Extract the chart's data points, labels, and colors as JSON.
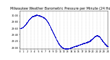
{
  "title": "Milwaukee Weather Barometric Pressure per Minute (24 Hours)",
  "title_fontsize": 3.5,
  "dot_color": "#0000cc",
  "dot_size": 0.3,
  "background_color": "#ffffff",
  "grid_color": "#aaaaaa",
  "ylim": [
    28.95,
    30.15
  ],
  "xlim": [
    0,
    1440
  ],
  "yticks": [
    29.0,
    29.2,
    29.4,
    29.6,
    29.8,
    30.0
  ],
  "tick_fontsize": 2.5,
  "xtick_hours": [
    0,
    60,
    120,
    180,
    240,
    300,
    360,
    420,
    480,
    540,
    600,
    660,
    720,
    780,
    840,
    900,
    960,
    1020,
    1080,
    1140,
    1200,
    1260,
    1320,
    1380,
    1440
  ],
  "xtick_labels": [
    "0",
    "1",
    "2",
    "3",
    "4",
    "5",
    "6",
    "7",
    "8",
    "9",
    "10",
    "11",
    "12",
    "13",
    "14",
    "15",
    "16",
    "17",
    "18",
    "19",
    "20",
    "21",
    "22",
    "23",
    "24"
  ],
  "pressure_points": [
    [
      0,
      29.6
    ],
    [
      30,
      29.62
    ],
    [
      60,
      29.65
    ],
    [
      90,
      29.72
    ],
    [
      120,
      29.8
    ],
    [
      150,
      29.88
    ],
    [
      180,
      29.94
    ],
    [
      210,
      29.98
    ],
    [
      240,
      30.0
    ],
    [
      270,
      30.02
    ],
    [
      300,
      30.01
    ],
    [
      330,
      29.99
    ],
    [
      360,
      29.97
    ],
    [
      390,
      29.94
    ],
    [
      420,
      29.9
    ],
    [
      450,
      29.82
    ],
    [
      480,
      29.72
    ],
    [
      510,
      29.6
    ],
    [
      540,
      29.48
    ],
    [
      570,
      29.36
    ],
    [
      600,
      29.24
    ],
    [
      630,
      29.14
    ],
    [
      660,
      29.06
    ],
    [
      690,
      29.01
    ],
    [
      720,
      28.98
    ],
    [
      750,
      28.97
    ],
    [
      780,
      28.97
    ],
    [
      810,
      28.98
    ],
    [
      840,
      29.0
    ],
    [
      870,
      29.02
    ],
    [
      900,
      29.04
    ],
    [
      930,
      29.06
    ],
    [
      960,
      29.08
    ],
    [
      990,
      29.1
    ],
    [
      1020,
      29.12
    ],
    [
      1050,
      29.14
    ],
    [
      1080,
      29.16
    ],
    [
      1110,
      29.18
    ],
    [
      1140,
      29.2
    ],
    [
      1170,
      29.25
    ],
    [
      1200,
      29.3
    ],
    [
      1230,
      29.35
    ],
    [
      1260,
      29.38
    ],
    [
      1290,
      29.36
    ],
    [
      1320,
      29.3
    ],
    [
      1350,
      29.22
    ],
    [
      1380,
      29.14
    ],
    [
      1410,
      29.08
    ],
    [
      1440,
      29.03
    ]
  ]
}
